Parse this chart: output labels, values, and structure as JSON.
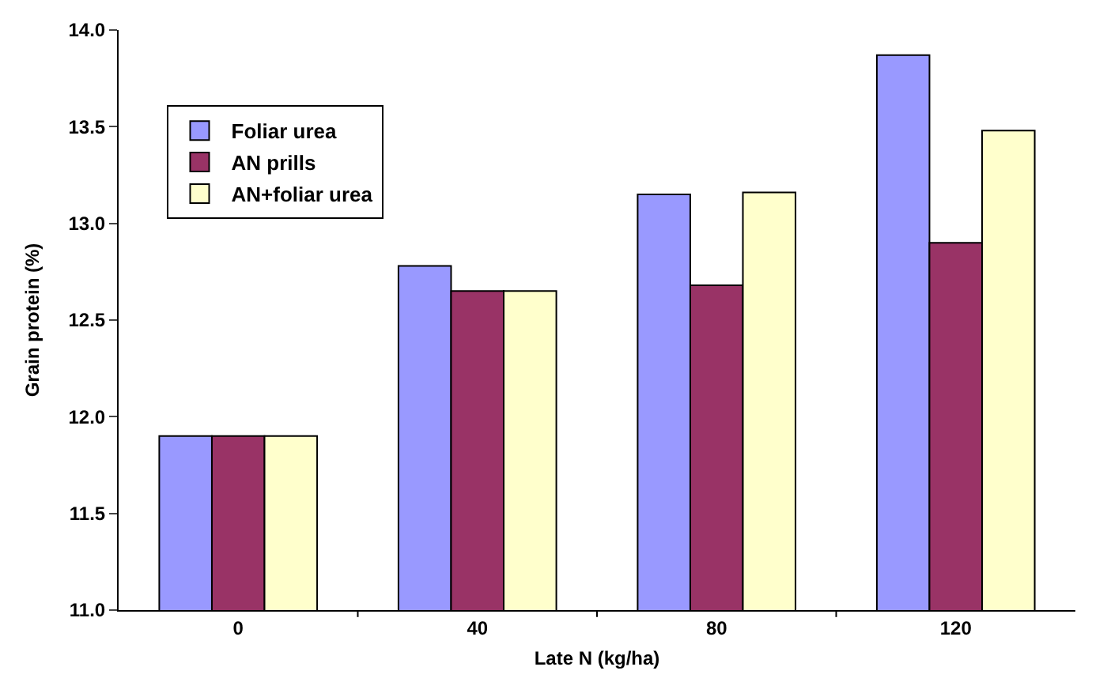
{
  "chart_data": {
    "type": "bar",
    "xlabel": "Late N (kg/ha)",
    "ylabel": "Grain protein (%)",
    "categories": [
      "0",
      "40",
      "80",
      "120"
    ],
    "series": [
      {
        "name": "Foliar urea",
        "color": "#9999ff",
        "values": [
          11.9,
          12.78,
          13.15,
          13.87
        ]
      },
      {
        "name": "AN prills",
        "color": "#993366",
        "values": [
          11.9,
          12.65,
          12.68,
          12.9
        ]
      },
      {
        "name": "AN+foliar urea",
        "color": "#ffffcc",
        "values": [
          11.9,
          12.65,
          13.16,
          13.48
        ]
      }
    ],
    "ylim": [
      11.0,
      14.0
    ],
    "yticks": [
      {
        "value": 11.0,
        "label": "11.0"
      },
      {
        "value": 11.5,
        "label": "11.5"
      },
      {
        "value": 12.0,
        "label": "12.0"
      },
      {
        "value": 12.5,
        "label": "12.5"
      },
      {
        "value": 13.0,
        "label": "13.0"
      },
      {
        "value": 13.5,
        "label": "13.5"
      },
      {
        "value": 14.0,
        "label": "14.0"
      }
    ],
    "legend": "top left"
  }
}
